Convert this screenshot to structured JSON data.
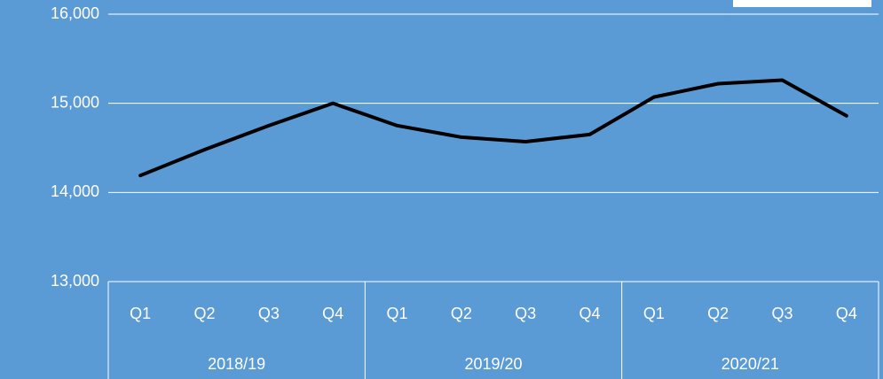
{
  "chart_data": {
    "type": "line",
    "categories": [
      "Q1",
      "Q2",
      "Q3",
      "Q4",
      "Q1",
      "Q2",
      "Q3",
      "Q4",
      "Q1",
      "Q2",
      "Q3",
      "Q4"
    ],
    "category_groups": [
      "2018/19",
      "2019/20",
      "2020/21"
    ],
    "series": [
      {
        "color": "#000000",
        "values": [
          14190,
          14480,
          14750,
          15000,
          14750,
          14620,
          14570,
          14650,
          15070,
          15220,
          15260,
          14860
        ]
      }
    ],
    "ylim": [
      13000,
      16000
    ],
    "yticks": [
      {
        "value": 13000,
        "label": "13,000"
      },
      {
        "value": 14000,
        "label": "14,000"
      },
      {
        "value": 15000,
        "label": "15,000"
      },
      {
        "value": 16000,
        "label": "16,000"
      }
    ],
    "grid": true
  }
}
